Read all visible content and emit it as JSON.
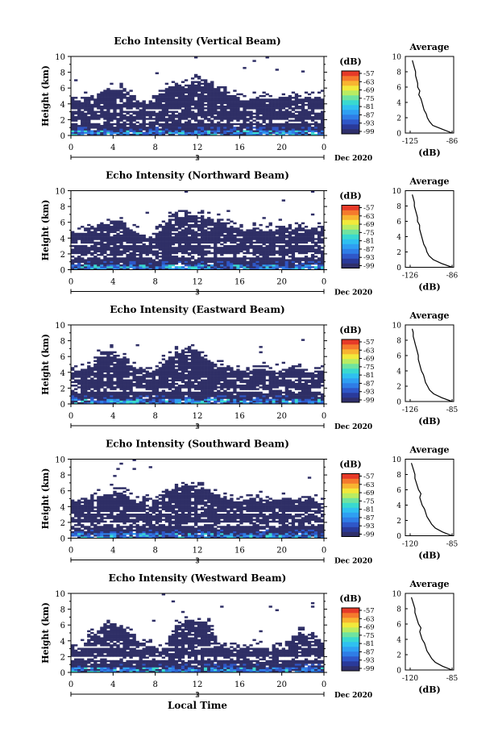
{
  "x_axis_title": "Local Time",
  "time_range": "Dec 2020",
  "day": "3",
  "colorbar": {
    "unit": "(dB)",
    "tick_labels": [
      "-57",
      "-63",
      "-69",
      "-75",
      "-81",
      "-87",
      "-93",
      "-99"
    ],
    "colors": [
      "#2f2f6b",
      "#2a3a9a",
      "#2f57c8",
      "#2f7de6",
      "#2f9ff2",
      "#2fc0f0",
      "#39d9d0",
      "#6fe3a0",
      "#b9ec62",
      "#f2e93b",
      "#f8b431",
      "#f57a2d",
      "#e63a28"
    ]
  },
  "heatmap_color": "#2f2f66",
  "near_surface_colors": [
    "#2f57c8",
    "#2f7de6",
    "#2f9ff2",
    "#39d9d0"
  ],
  "chart_data": [
    {
      "type": "heatmap",
      "title": "Echo Intensity (Vertical Beam)",
      "ylabel": "Height (km)",
      "xlim": [
        0,
        24
      ],
      "ylim": [
        0,
        10
      ],
      "x_ticks": [
        "0",
        "4",
        "8",
        "12",
        "16",
        "20",
        "0"
      ],
      "y_ticks": [
        "0",
        "2",
        "4",
        "6",
        "8",
        "10"
      ],
      "coverage_profile": {
        "t": [
          0,
          1,
          2,
          3,
          4,
          5,
          6,
          7,
          8,
          9,
          10,
          11,
          12,
          13,
          14,
          15,
          16,
          17,
          18,
          19,
          20,
          21,
          22,
          23,
          24
        ],
        "top_km": [
          4.6,
          4.5,
          4.7,
          5.4,
          5.7,
          5.6,
          4.6,
          4.2,
          4.4,
          5.8,
          6.4,
          6.6,
          6.8,
          6.6,
          5.9,
          5.2,
          4.8,
          4.6,
          4.7,
          4.5,
          4.7,
          4.9,
          4.8,
          4.8,
          4.8
        ]
      },
      "inset": {
        "title": "Average",
        "xlabel": "(dB)",
        "xlim": [
          -125,
          -86
        ],
        "x_ticks": [
          "-125",
          "-86"
        ],
        "ylim": [
          0,
          10
        ],
        "y_ticks": [
          "0",
          "2",
          "4",
          "6",
          "8",
          "10"
        ],
        "profile_height_km": [
          0,
          0.5,
          1,
          1.5,
          2,
          2.5,
          3,
          3.5,
          4,
          4.5,
          5,
          5.5,
          6,
          6.5,
          7,
          7.5,
          8,
          8.5,
          9,
          9.5
        ],
        "profile_db": [
          -86,
          -95,
          -104,
          -107,
          -109,
          -110,
          -112,
          -113,
          -114,
          -115,
          -117,
          -116,
          -118,
          -118,
          -119,
          -120,
          -120,
          -121,
          -122,
          -123
        ]
      }
    },
    {
      "type": "heatmap",
      "title": "Echo Intensity (Northward Beam)",
      "ylabel": "Height (km)",
      "xlim": [
        0,
        24
      ],
      "ylim": [
        0,
        10
      ],
      "x_ticks": [
        "0",
        "4",
        "8",
        "12",
        "16",
        "20",
        "0"
      ],
      "y_ticks": [
        "0",
        "2",
        "4",
        "6",
        "8",
        "10"
      ],
      "coverage_profile": {
        "t": [
          0,
          1,
          2,
          3,
          4,
          5,
          6,
          7,
          8,
          9,
          10,
          11,
          12,
          13,
          14,
          15,
          16,
          17,
          18,
          19,
          20,
          21,
          22,
          23,
          24
        ],
        "top_km": [
          4.6,
          4.6,
          5.0,
          5.8,
          6.2,
          5.8,
          4.7,
          4.2,
          4.3,
          6.0,
          6.8,
          6.9,
          6.9,
          6.7,
          6.2,
          5.6,
          5.2,
          5.0,
          5.1,
          5.0,
          5.1,
          5.3,
          5.4,
          5.1,
          5.0
        ]
      },
      "inset": {
        "title": "Average",
        "xlabel": "(dB)",
        "xlim": [
          -126,
          -86
        ],
        "x_ticks": [
          "-126",
          "-86"
        ],
        "ylim": [
          0,
          10
        ],
        "y_ticks": [
          "0",
          "2",
          "4",
          "6",
          "8",
          "10"
        ],
        "profile_height_km": [
          0,
          0.5,
          1,
          1.5,
          2,
          2.5,
          3,
          3.5,
          4,
          4.5,
          5,
          5.5,
          6,
          6.5,
          7,
          7.5,
          8,
          8.5,
          9,
          9.5
        ],
        "profile_db": [
          -86,
          -96,
          -104,
          -108,
          -110,
          -111,
          -113,
          -114,
          -115,
          -116,
          -117,
          -117,
          -119,
          -119,
          -120,
          -121,
          -122,
          -122,
          -123,
          -124
        ]
      }
    },
    {
      "type": "heatmap",
      "title": "Echo Intensity (Eastward Beam)",
      "ylabel": "Height (km)",
      "xlim": [
        0,
        24
      ],
      "ylim": [
        0,
        10
      ],
      "x_ticks": [
        "0",
        "4",
        "8",
        "12",
        "16",
        "20",
        "0"
      ],
      "y_ticks": [
        "0",
        "2",
        "4",
        "6",
        "8",
        "10"
      ],
      "coverage_profile": {
        "t": [
          0,
          1,
          2,
          3,
          4,
          5,
          6,
          7,
          8,
          9,
          10,
          11,
          12,
          13,
          14,
          15,
          16,
          17,
          18,
          19,
          20,
          21,
          22,
          23,
          24
        ],
        "top_km": [
          4.0,
          4.2,
          5.0,
          6.4,
          6.6,
          5.8,
          4.8,
          4.2,
          4.0,
          5.6,
          6.6,
          6.8,
          6.8,
          5.6,
          4.8,
          4.4,
          4.2,
          4.2,
          4.3,
          4.2,
          4.3,
          4.4,
          4.2,
          4.0,
          4.0
        ]
      },
      "inset": {
        "title": "Average",
        "xlabel": "(dB)",
        "xlim": [
          -126,
          -85
        ],
        "x_ticks": [
          "-126",
          "-85"
        ],
        "ylim": [
          0,
          10
        ],
        "y_ticks": [
          "0",
          "2",
          "4",
          "6",
          "8",
          "10"
        ],
        "profile_height_km": [
          0,
          0.5,
          1,
          1.5,
          2,
          2.5,
          3,
          3.5,
          4,
          4.5,
          5,
          5.5,
          6,
          6.5,
          7,
          7.5,
          8,
          8.5,
          9,
          9.5
        ],
        "profile_db": [
          -85,
          -95,
          -103,
          -107,
          -109,
          -111,
          -112,
          -113,
          -115,
          -116,
          -117,
          -118,
          -118,
          -119,
          -120,
          -121,
          -122,
          -123,
          -123,
          -124
        ]
      }
    },
    {
      "type": "heatmap",
      "title": "Echo Intensity (Southward Beam)",
      "ylabel": "Height (km)",
      "xlim": [
        0,
        24
      ],
      "ylim": [
        0,
        10
      ],
      "x_ticks": [
        "0",
        "4",
        "8",
        "12",
        "16",
        "20",
        "0"
      ],
      "y_ticks": [
        "0",
        "2",
        "4",
        "6",
        "8",
        "10"
      ],
      "coverage_profile": {
        "t": [
          0,
          1,
          2,
          3,
          4,
          5,
          6,
          7,
          8,
          9,
          10,
          11,
          12,
          13,
          14,
          15,
          16,
          17,
          18,
          19,
          20,
          21,
          22,
          23,
          24
        ],
        "top_km": [
          4.6,
          4.6,
          5.0,
          5.6,
          6.0,
          5.8,
          4.8,
          4.4,
          4.6,
          6.0,
          6.5,
          6.6,
          6.4,
          6.0,
          5.4,
          5.0,
          4.8,
          4.8,
          4.9,
          4.8,
          4.9,
          5.0,
          4.8,
          4.7,
          4.6
        ]
      },
      "inset": {
        "title": "Average",
        "xlabel": "(dB)",
        "xlim": [
          -120,
          -85
        ],
        "x_ticks": [
          "-120",
          "-85"
        ],
        "ylim": [
          0,
          10
        ],
        "y_ticks": [
          "0",
          "2",
          "4",
          "6",
          "8",
          "10"
        ],
        "profile_height_km": [
          0,
          0.5,
          1,
          1.5,
          2,
          2.5,
          3,
          3.5,
          4,
          4.5,
          5,
          5.5,
          6,
          6.5,
          7,
          7.5,
          8,
          8.5,
          9,
          9.5
        ],
        "profile_db": [
          -85,
          -93,
          -99,
          -102,
          -104,
          -106,
          -107,
          -108,
          -110,
          -111,
          -112,
          -111,
          -113,
          -114,
          -115,
          -116,
          -116,
          -117,
          -118,
          -119
        ]
      }
    },
    {
      "type": "heatmap",
      "title": "Echo Intensity (Westward Beam)",
      "ylabel": "Height (km)",
      "xlim": [
        0,
        24
      ],
      "ylim": [
        0,
        10
      ],
      "x_ticks": [
        "0",
        "4",
        "8",
        "12",
        "16",
        "20",
        "0"
      ],
      "y_ticks": [
        "0",
        "2",
        "4",
        "6",
        "8",
        "10"
      ],
      "coverage_profile": {
        "t": [
          0,
          1,
          2,
          3,
          4,
          5,
          6,
          7,
          8,
          9,
          10,
          11,
          12,
          13,
          14,
          15,
          16,
          17,
          18,
          19,
          20,
          21,
          22,
          23,
          24
        ],
        "top_km": [
          3.2,
          3.6,
          4.8,
          5.8,
          6.0,
          5.4,
          4.2,
          3.4,
          3.2,
          3.0,
          6.0,
          6.4,
          6.6,
          6.2,
          3.4,
          3.2,
          3.0,
          3.0,
          3.2,
          3.0,
          3.2,
          4.4,
          5.0,
          4.4,
          3.6
        ]
      },
      "inset": {
        "title": "Average",
        "xlabel": "(dB)",
        "xlim": [
          -120,
          -85
        ],
        "x_ticks": [
          "-120",
          "-85"
        ],
        "ylim": [
          0,
          10
        ],
        "y_ticks": [
          "0",
          "2",
          "4",
          "6",
          "8",
          "10"
        ],
        "profile_height_km": [
          0,
          0.5,
          1,
          1.5,
          2,
          2.5,
          3,
          3.5,
          4,
          4.5,
          5,
          5.5,
          6,
          6.5,
          7,
          7.5,
          8,
          8.5,
          9,
          9.5
        ],
        "profile_db": [
          -85,
          -93,
          -99,
          -102,
          -104,
          -106,
          -107,
          -108,
          -110,
          -111,
          -112,
          -111,
          -113,
          -114,
          -115,
          -116,
          -116,
          -117,
          -118,
          -119
        ]
      }
    }
  ]
}
